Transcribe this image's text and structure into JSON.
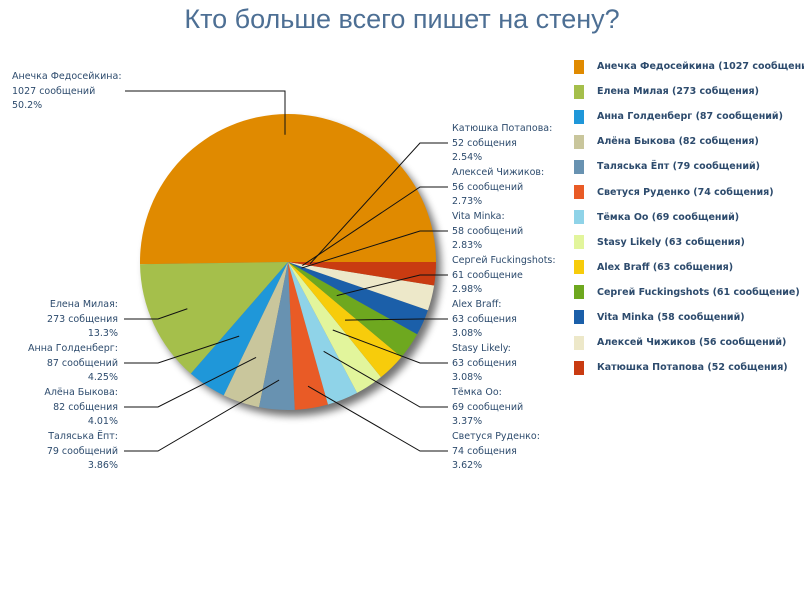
{
  "chart_data": {
    "type": "pie",
    "title": "Кто больше всего пишет на стену?",
    "legend_position": "right",
    "slices": [
      {
        "name": "Анечка Федосейкина",
        "value": 1027,
        "count_label": "1027 сообщений",
        "percent": "50.2%",
        "color": "#e08a00"
      },
      {
        "name": "Елена Милая",
        "value": 273,
        "count_label": "273 собщения",
        "percent": "13.3%",
        "color": "#a5bf4b"
      },
      {
        "name": "Анна Голденберг",
        "value": 87,
        "count_label": "87 сообщений",
        "percent": "4.25%",
        "color": "#1f97d9"
      },
      {
        "name": "Алёна Быкова",
        "value": 82,
        "count_label": "82 собщения",
        "percent": "4.01%",
        "color": "#c9c69c"
      },
      {
        "name": "Таляська Ёпт",
        "value": 79,
        "count_label": "79 сообщений",
        "percent": "3.86%",
        "color": "#6892b1"
      },
      {
        "name": "Светуся Руденко",
        "value": 74,
        "count_label": "74 собщения",
        "percent": "3.62%",
        "color": "#e95b26"
      },
      {
        "name": "Тёмка Оо",
        "value": 69,
        "count_label": "69 сообщений",
        "percent": "3.37%",
        "color": "#8fd3e8"
      },
      {
        "name": "Stasy Likely",
        "value": 63,
        "count_label": "63 собщения",
        "percent": "3.08%",
        "color": "#e2f59c"
      },
      {
        "name": "Alex Braff",
        "value": 63,
        "count_label": "63 собщения",
        "percent": "3.08%",
        "color": "#f7cc0b"
      },
      {
        "name": "Сергей Fuckingshots",
        "value": 61,
        "count_label": "61 сообщение",
        "percent": "2.98%",
        "color": "#6ea81f"
      },
      {
        "name": "Vita Minka",
        "value": 58,
        "count_label": "58 сообщений",
        "percent": "2.83%",
        "color": "#1b5fa9"
      },
      {
        "name": "Алексей Чижиков",
        "value": 56,
        "count_label": "56 сообщений",
        "percent": "2.73%",
        "color": "#ede8c9"
      },
      {
        "name": "Катюшка Потапова",
        "value": 52,
        "count_label": "52 собщения",
        "percent": "2.54%",
        "color": "#c93b11"
      }
    ]
  }
}
